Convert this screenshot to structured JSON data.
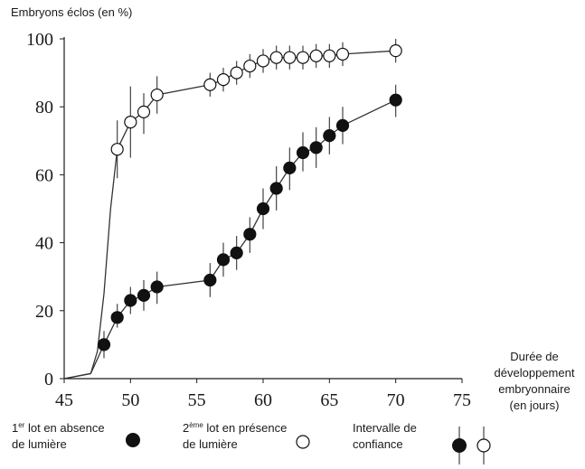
{
  "chart_data": {
    "type": "line",
    "ylabel": "Embryons éclos (en %)",
    "xlabel": "Durée de développement embryonnaire (en jours)",
    "xlim": [
      45,
      75
    ],
    "ylim": [
      0,
      100
    ],
    "xticks": [
      45,
      50,
      55,
      60,
      65,
      70,
      75
    ],
    "yticks": [
      0,
      20,
      40,
      60,
      80,
      100
    ],
    "grid": false,
    "legend_position": "bottom",
    "series": [
      {
        "key": "lot1",
        "marker": "filled-circle",
        "name_sup": "er",
        "name_line1": "lot en absence",
        "name_line2": "de lumière",
        "points": [
          {
            "x": 48,
            "y": 10,
            "lo": 6,
            "hi": 14
          },
          {
            "x": 49,
            "y": 18,
            "lo": 15,
            "hi": 22
          },
          {
            "x": 50,
            "y": 23,
            "lo": 19,
            "hi": 27
          },
          {
            "x": 51,
            "y": 24.5,
            "lo": 20,
            "hi": 29
          },
          {
            "x": 52,
            "y": 27,
            "lo": 22,
            "hi": 31.5
          },
          {
            "x": 56,
            "y": 29,
            "lo": 24,
            "hi": 34
          },
          {
            "x": 57,
            "y": 35,
            "lo": 30,
            "hi": 40
          },
          {
            "x": 58,
            "y": 37,
            "lo": 32,
            "hi": 42
          },
          {
            "x": 59,
            "y": 42.5,
            "lo": 37,
            "hi": 47.5
          },
          {
            "x": 60,
            "y": 50,
            "lo": 44,
            "hi": 56
          },
          {
            "x": 61,
            "y": 56,
            "lo": 49.5,
            "hi": 62.5
          },
          {
            "x": 62,
            "y": 62,
            "lo": 55.5,
            "hi": 68
          },
          {
            "x": 63,
            "y": 66.5,
            "lo": 61,
            "hi": 72.5
          },
          {
            "x": 64,
            "y": 68,
            "lo": 62,
            "hi": 74
          },
          {
            "x": 65,
            "y": 71.5,
            "lo": 66,
            "hi": 77
          },
          {
            "x": 66,
            "y": 74.5,
            "lo": 69,
            "hi": 80
          },
          {
            "x": 70,
            "y": 82,
            "lo": 77,
            "hi": 86.5
          }
        ],
        "curve": [
          [
            45,
            0
          ],
          [
            47,
            1.5
          ],
          [
            48,
            10
          ],
          [
            49,
            18
          ],
          [
            50,
            23
          ],
          [
            51,
            24.5
          ],
          [
            52,
            27
          ],
          [
            56,
            29
          ],
          [
            57,
            35
          ],
          [
            58,
            37
          ],
          [
            59,
            42.5
          ],
          [
            60,
            50
          ],
          [
            61,
            56
          ],
          [
            62,
            62
          ],
          [
            63,
            66.5
          ],
          [
            64,
            68
          ],
          [
            65,
            71.5
          ],
          [
            66,
            74.5
          ],
          [
            70,
            82
          ]
        ]
      },
      {
        "key": "lot2",
        "marker": "open-circle",
        "name_sup": "ème",
        "name_line1": "lot en présence",
        "name_line2": "de lumière",
        "points": [
          {
            "x": 49,
            "y": 67.5,
            "lo": 59,
            "hi": 76
          },
          {
            "x": 50,
            "y": 75.5,
            "lo": 65,
            "hi": 86
          },
          {
            "x": 51,
            "y": 78.5,
            "lo": 72,
            "hi": 84
          },
          {
            "x": 52,
            "y": 83.5,
            "lo": 78,
            "hi": 89
          },
          {
            "x": 56,
            "y": 86.5,
            "lo": 83,
            "hi": 90
          },
          {
            "x": 57,
            "y": 88,
            "lo": 84.5,
            "hi": 91.5
          },
          {
            "x": 58,
            "y": 90,
            "lo": 86.5,
            "hi": 93.5
          },
          {
            "x": 59,
            "y": 92,
            "lo": 88.5,
            "hi": 95.5
          },
          {
            "x": 60,
            "y": 93.5,
            "lo": 90,
            "hi": 97
          },
          {
            "x": 61,
            "y": 94.5,
            "lo": 91,
            "hi": 98
          },
          {
            "x": 62,
            "y": 94.5,
            "lo": 91,
            "hi": 98
          },
          {
            "x": 63,
            "y": 94.5,
            "lo": 91,
            "hi": 98
          },
          {
            "x": 64,
            "y": 95,
            "lo": 91.5,
            "hi": 98.5
          },
          {
            "x": 65,
            "y": 95,
            "lo": 91.5,
            "hi": 98.5
          },
          {
            "x": 66,
            "y": 95.5,
            "lo": 92,
            "hi": 99
          },
          {
            "x": 70,
            "y": 96.5,
            "lo": 93,
            "hi": 100
          }
        ],
        "curve": [
          [
            45,
            0
          ],
          [
            47,
            1.5
          ],
          [
            47.5,
            8
          ],
          [
            48,
            25
          ],
          [
            48.5,
            50
          ],
          [
            49,
            67.5
          ],
          [
            50,
            75.5
          ],
          [
            51,
            78.5
          ],
          [
            52,
            83.5
          ],
          [
            56,
            86.5
          ],
          [
            57,
            88
          ],
          [
            58,
            90
          ],
          [
            59,
            92
          ],
          [
            60,
            93.5
          ],
          [
            61,
            94.5
          ],
          [
            62,
            94.5
          ],
          [
            63,
            94.5
          ],
          [
            64,
            95
          ],
          [
            65,
            95
          ],
          [
            66,
            95.5
          ],
          [
            70,
            96.5
          ]
        ]
      }
    ],
    "legend": {
      "lot1_num": "1",
      "lot2_num": "2",
      "ci_line1": "Intervalle de",
      "ci_line2": "confiance"
    },
    "xlabel_lines": [
      "Durée de",
      "développement",
      "embryonnaire",
      "(en jours)"
    ]
  }
}
